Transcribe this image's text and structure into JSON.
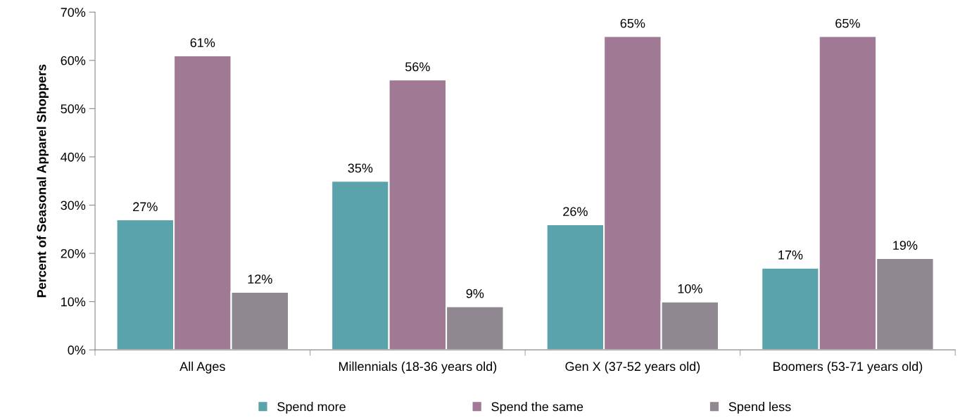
{
  "chart_data": {
    "type": "bar",
    "ylabel": "Percent of Seasonal Apparel Shoppers",
    "categories": [
      "All Ages",
      "Millennials (18-36 years old)",
      "Gen X (37-52 years old)",
      "Boomers (53-71 years old)"
    ],
    "series": [
      {
        "name": "Spend more",
        "color": "#5ba3ab",
        "values": [
          27,
          35,
          26,
          17
        ],
        "value_labels": [
          "27%",
          "35%",
          "26%",
          "17%"
        ]
      },
      {
        "name": "Spend the same",
        "color": "#a07a95",
        "values": [
          61,
          56,
          65,
          65
        ],
        "value_labels": [
          "61%",
          "56%",
          "65%",
          "65%"
        ]
      },
      {
        "name": "Spend less",
        "color": "#908890",
        "values": [
          12,
          9,
          10,
          19
        ],
        "value_labels": [
          "12%",
          "9%",
          "10%",
          "19%"
        ]
      }
    ],
    "ylim": [
      0,
      70
    ],
    "yticks": [
      {
        "value": 0,
        "label": "0%"
      },
      {
        "value": 10,
        "label": "10%"
      },
      {
        "value": 20,
        "label": "20%"
      },
      {
        "value": 30,
        "label": "30%"
      },
      {
        "value": 40,
        "label": "40%"
      },
      {
        "value": 50,
        "label": "50%"
      },
      {
        "value": 60,
        "label": "60%"
      },
      {
        "value": 70,
        "label": "70%"
      }
    ],
    "grid": false,
    "legend": "bottom"
  }
}
